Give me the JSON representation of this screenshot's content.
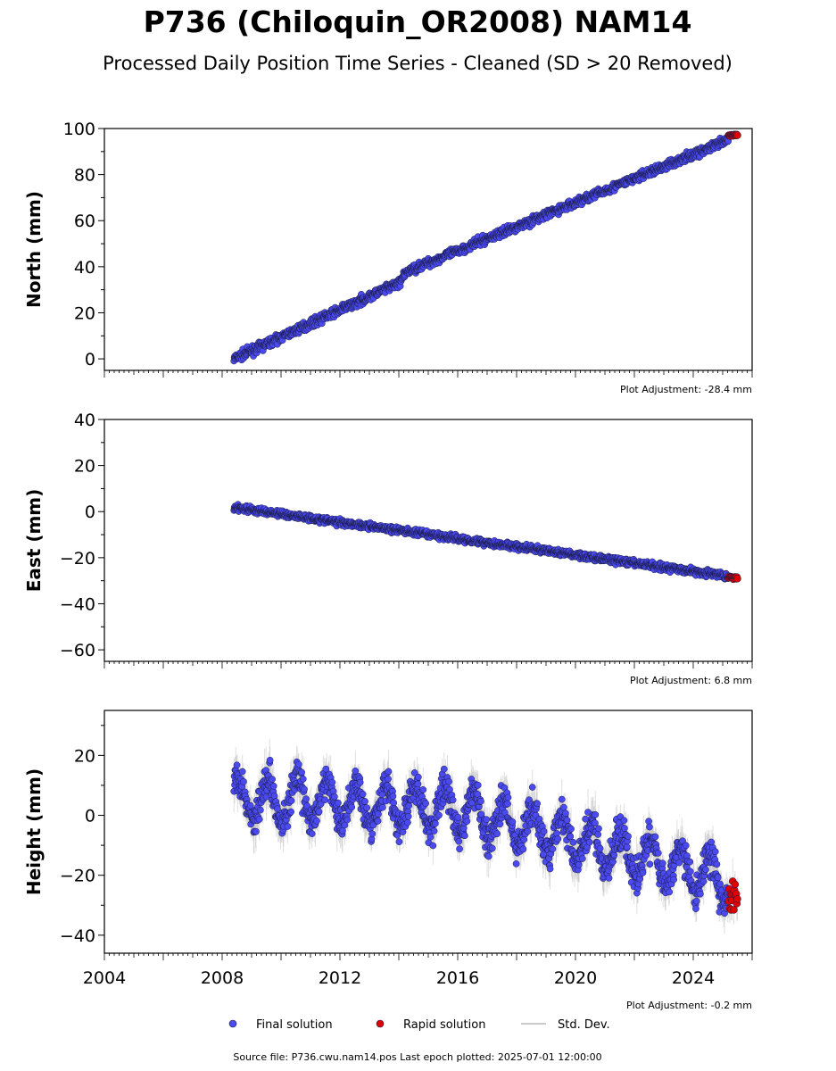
{
  "header": {
    "title": "P736 (Chiloquin_OR2008) NAM14",
    "subtitle": "Processed Daily Position Time Series - Cleaned (SD > 20 Removed)"
  },
  "colors": {
    "final": "#4a4af0",
    "rapid": "#e00000",
    "std": "#b8b8b8",
    "edge": "#1a1a44"
  },
  "legend": {
    "final_label": "Final solution",
    "rapid_label": "Rapid solution",
    "std_label": "Std. Dev."
  },
  "footer": {
    "source": "Source file: P736.cwu.nam14.pos  Last epoch plotted: 2025-07-01 12:00:00"
  },
  "chart_data": [
    {
      "type": "scatter",
      "ylabel": "North (mm)",
      "adjustment": "Plot Adjustment: -28.4 mm",
      "xlim": [
        2004,
        2026
      ],
      "ylim": [
        -5,
        100
      ],
      "yticks": [
        0,
        20,
        40,
        60,
        80,
        100
      ],
      "ytick_labels": [
        "0",
        "20",
        "40",
        "60",
        "80",
        "100"
      ],
      "xticks": [],
      "xtick_labels": [],
      "series": [
        {
          "kind": "final",
          "trend": [
            [
              2008.4,
              0
            ],
            [
              2014.0,
              33
            ],
            [
              2014.3,
              38
            ],
            [
              2025.2,
              95
            ]
          ],
          "scatter": 1.3,
          "start": 2008.4,
          "end": 2025.2
        },
        {
          "kind": "rapid",
          "trend": [
            [
              2025.2,
              97
            ],
            [
              2025.5,
              97
            ]
          ],
          "scatter": 0.5,
          "start": 2025.2,
          "end": 2025.5
        }
      ]
    },
    {
      "type": "scatter",
      "ylabel": "East (mm)",
      "adjustment": "Plot Adjustment: 6.8 mm",
      "xlim": [
        2004,
        2026
      ],
      "ylim": [
        -65,
        40
      ],
      "yticks": [
        -60,
        -40,
        -20,
        0,
        20,
        40
      ],
      "ytick_labels": [
        "−60",
        "−40",
        "−20",
        "0",
        "20",
        "40"
      ],
      "xticks": [],
      "xtick_labels": [],
      "series": [
        {
          "kind": "final",
          "trend": [
            [
              2008.4,
              2
            ],
            [
              2010.0,
              -1
            ],
            [
              2025.2,
              -28
            ]
          ],
          "scatter": 1.0,
          "start": 2008.4,
          "end": 2025.2
        },
        {
          "kind": "rapid",
          "trend": [
            [
              2025.2,
              -28.5
            ],
            [
              2025.5,
              -28.5
            ]
          ],
          "scatter": 0.5,
          "start": 2025.2,
          "end": 2025.5
        }
      ]
    },
    {
      "type": "scatter",
      "ylabel": "Height (mm)",
      "adjustment": "Plot Adjustment: -0.2 mm",
      "xlim": [
        2004,
        2026
      ],
      "ylim": [
        -46,
        35
      ],
      "yticks": [
        -40,
        -20,
        0,
        20
      ],
      "ytick_labels": [
        "−40",
        "−20",
        "0",
        "20"
      ],
      "xticks": [
        2004,
        2008,
        2012,
        2016,
        2020,
        2024
      ],
      "xtick_labels": [
        "2004",
        "2008",
        "2012",
        "2016",
        "2020",
        "2024"
      ],
      "series": [
        {
          "kind": "final",
          "trend": [
            [
              2008.4,
              6
            ],
            [
              2016.0,
              2
            ],
            [
              2025.2,
              -22
            ]
          ],
          "seasonal": 7,
          "scatter": 4,
          "start": 2008.4,
          "end": 2025.2
        },
        {
          "kind": "rapid",
          "trend": [
            [
              2025.2,
              -27
            ],
            [
              2025.5,
              -27
            ]
          ],
          "scatter": 4,
          "start": 2025.2,
          "end": 2025.5
        }
      ]
    }
  ]
}
